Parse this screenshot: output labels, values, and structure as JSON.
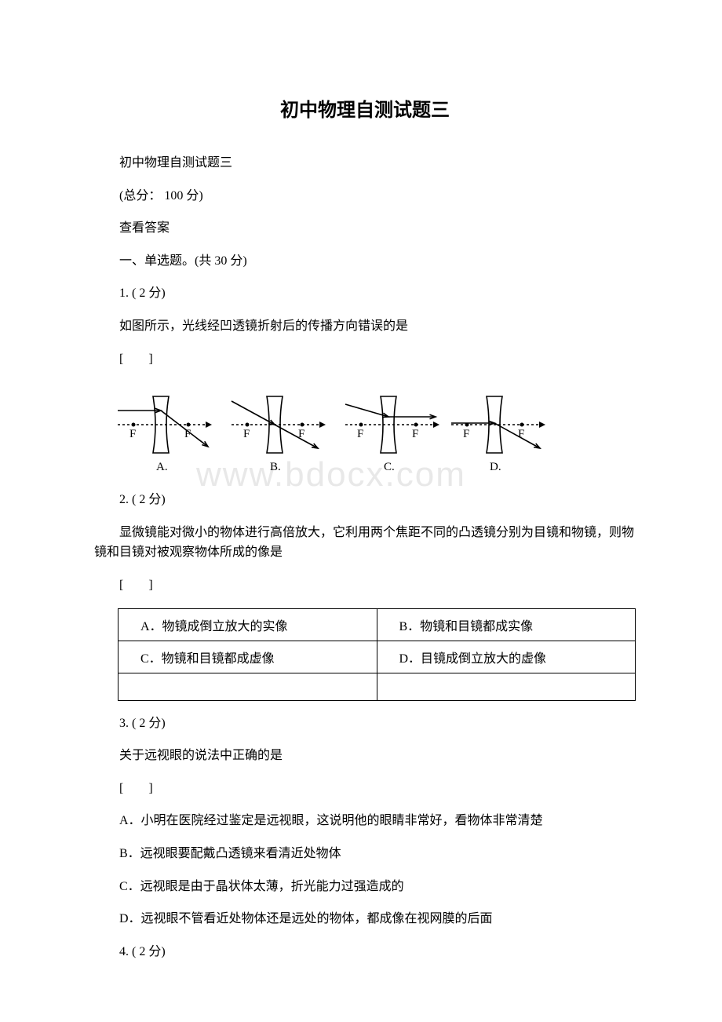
{
  "title": "初中物理自测试题三",
  "subtitle": "初中物理自测试题三",
  "total_score": "(总分： 100 分)",
  "view_answers": "查看答案",
  "section1_heading": "一、单选题。(共 30 分)",
  "watermark": "www.bdocx.com",
  "q1": {
    "num": "1. ( 2 分)",
    "stem": "如图所示，光线经凹透镜折射后的传播方向错误的是",
    "bracket": "[　　]",
    "diagram": {
      "stroke": "#000000",
      "stroke_width": 1.6,
      "dash": "3,3",
      "labels": {
        "F": "F",
        "A": "A.",
        "B": "B.",
        "C": "C.",
        "D": "D."
      }
    }
  },
  "q2": {
    "num": "2. ( 2 分)",
    "stem": "显微镜能对微小的物体进行高倍放大，它利用两个焦距不同的凸透镜分别为目镜和物镜，则物镜和目镜对被观察物体所成的像是",
    "bracket": "[　　]",
    "opts": {
      "A": "A．物镜成倒立放大的实像",
      "B": "B．物镜和目镜都成实像",
      "C": "C．物镜和目镜都成虚像",
      "D": "D．目镜成倒立放大的虚像"
    }
  },
  "q3": {
    "num": "3. ( 2 分)",
    "stem": "关于远视眼的说法中正确的是",
    "bracket": "[　　]",
    "opts": {
      "A": "A．小明在医院经过鉴定是远视眼，这说明他的眼睛非常好，看物体非常清楚",
      "B": "B．远视眼要配戴凸透镜来看清近处物体",
      "C": "C．远视眼是由于晶状体太薄，折光能力过强造成的",
      "D": "D．远视眼不管看近处物体还是远处的物体，都成像在视网膜的后面"
    }
  },
  "q4": {
    "num": "4. ( 2 分)"
  }
}
